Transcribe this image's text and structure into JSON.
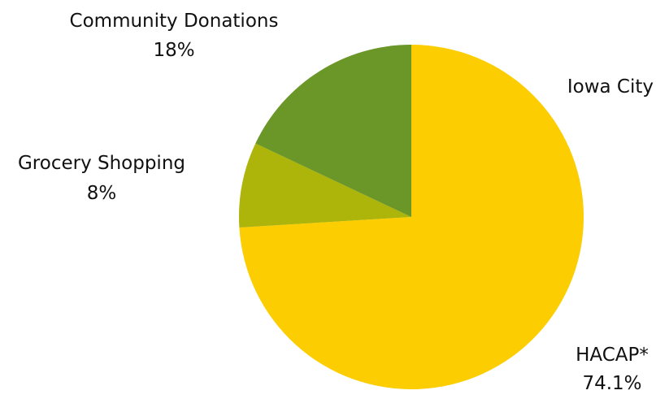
{
  "chart_data": {
    "type": "pie",
    "title": "Iowa City",
    "start_angle_deg": 0,
    "direction": "clockwise",
    "slices": [
      {
        "label": "HACAP*",
        "value": 74.1,
        "value_label": "74.1%",
        "color": "#FCCD00"
      },
      {
        "label": "Grocery Shopping",
        "value": 8,
        "value_label": "8%",
        "color": "#ADB50A"
      },
      {
        "label": "Community Donations",
        "value": 18,
        "value_label": "18%",
        "color": "#6A9727"
      }
    ]
  }
}
